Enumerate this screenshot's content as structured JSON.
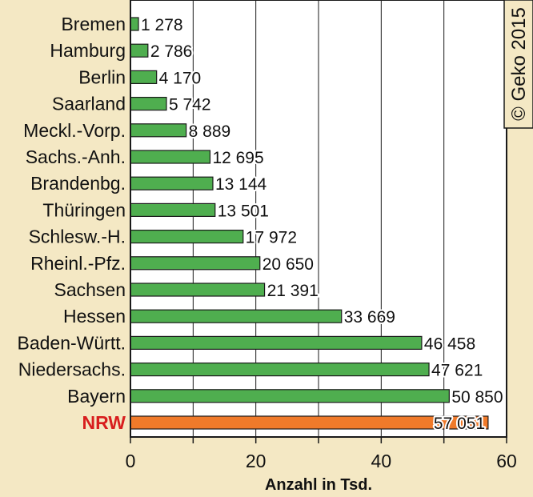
{
  "chart_data": {
    "type": "bar",
    "orientation": "horizontal",
    "categories": [
      "Bremen",
      "Hamburg",
      "Berlin",
      "Saarland",
      "Meckl.-Vorp.",
      "Sachs.-Anh.",
      "Brandenbg.",
      "Thüringen",
      "Schlesw.-H.",
      "Rheinl.-Pfz.",
      "Sachsen",
      "Hessen",
      "Baden-Württ.",
      "Niedersachs.",
      "Bayern",
      "NRW"
    ],
    "values": [
      1278,
      2786,
      4170,
      5742,
      8889,
      12695,
      13144,
      13501,
      17972,
      20650,
      21391,
      33669,
      46458,
      47621,
      50850,
      57051
    ],
    "value_labels": [
      "1 278",
      "2 786",
      "4 170",
      "5 742",
      "8 889",
      "12 695",
      "13 144",
      "13 501",
      "17 972",
      "20 650",
      "21 391",
      "33 669",
      "46 458",
      "47 621",
      "50 850",
      "57 051"
    ],
    "highlight_category": "NRW",
    "xlabel": "Anzahl in Tsd.",
    "xlim": [
      0,
      60
    ],
    "xticks": [
      0,
      20,
      40,
      60
    ],
    "minor_grid_step": 10,
    "grid": true,
    "colors": {
      "bar": "#4fae4f",
      "bar_highlight": "#f07a2a",
      "bar_border": "#1a1a1a",
      "label_highlight": "#d81e1e",
      "plot_background": "#ffffff",
      "page_background": "#f4e8c4",
      "grid": "#1a1a1a"
    }
  },
  "copyright": "© Geko 2015"
}
